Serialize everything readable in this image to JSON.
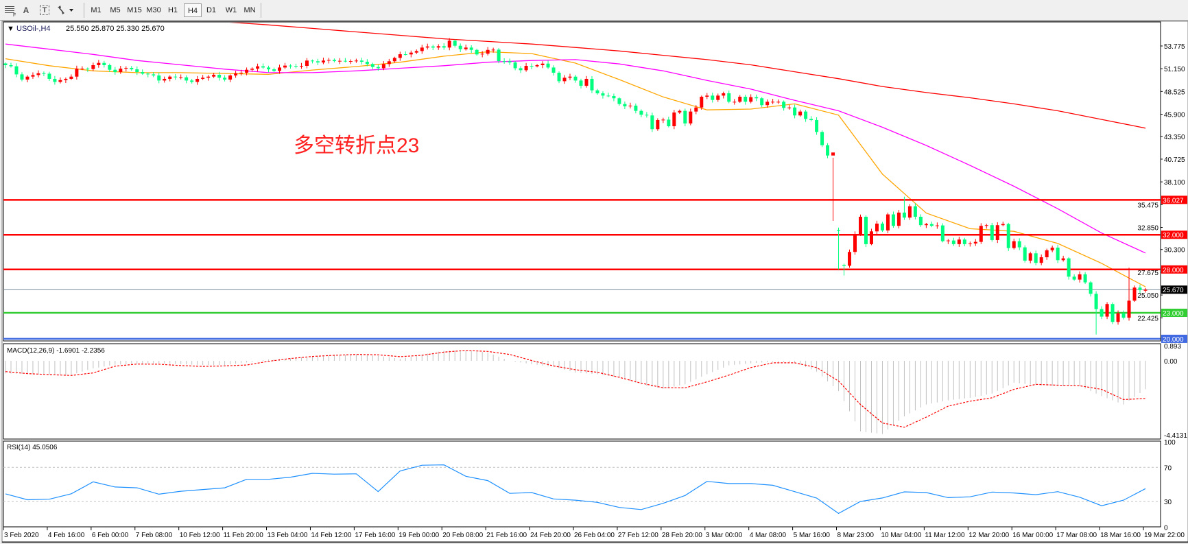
{
  "toolbar": {
    "tools": [
      {
        "icon": "grid-period-separator-icon"
      },
      {
        "icon": "text-label-icon",
        "label": "A"
      },
      {
        "icon": "text-box-icon",
        "label": "T"
      },
      {
        "icon": "arrows-dropdown-icon"
      }
    ],
    "timeframes": [
      "M1",
      "M5",
      "M15",
      "M30",
      "H1",
      "H4",
      "D1",
      "W1",
      "MN"
    ],
    "active_timeframe": "H4"
  },
  "header": {
    "collapse_glyph": "▼",
    "symbol": "USOil-,H4",
    "ohlc_text": "25.550 25.870 25.330 25.670"
  },
  "annotation": "多空转折点23",
  "colors": {
    "bull": "#ff0000",
    "bear": "#00ff7f",
    "ma_fast": "#ffa500",
    "ma_mid": "#ff00ff",
    "ma_slow": "#ff0000",
    "macd_hist": "#c0c0c0",
    "macd_signal": "#ff0000",
    "rsi": "#1e90ff"
  },
  "chart_data": [
    {
      "type": "candlestick",
      "symbol": "USOil-",
      "timeframe": "H4",
      "last_bar": {
        "open": 25.55,
        "high": 25.87,
        "low": 25.33,
        "close": 25.67
      },
      "ylim": [
        20.0,
        56.5
      ],
      "y_ticks": [
        "53.775",
        "51.150",
        "48.525",
        "45.900",
        "43.350",
        "40.725",
        "38.100",
        "35.475",
        "32.850",
        "30.300",
        "27.675",
        "25.050",
        "22.425"
      ],
      "x_ticks": [
        "3 Feb 2020",
        "4 Feb 16:00",
        "6 Feb 00:00",
        "7 Feb 08:00",
        "10 Feb 12:00",
        "11 Feb 20:00",
        "13 Feb 04:00",
        "14 Feb 12:00",
        "17 Feb 16:00",
        "19 Feb 00:00",
        "20 Feb 08:00",
        "21 Feb 16:00",
        "24 Feb 20:00",
        "26 Feb 04:00",
        "27 Feb 12:00",
        "28 Feb 20:00",
        "3 Mar 00:00",
        "4 Mar 08:00",
        "5 Mar 16:00",
        "8 Mar 23:00",
        "10 Mar 04:00",
        "11 Mar 12:00",
        "12 Mar 20:00",
        "16 Mar 00:00",
        "17 Mar 08:00",
        "18 Mar 16:00",
        "19 Mar 22:00"
      ],
      "closes": [
        51.56,
        51.43,
        50.5,
        49.9,
        50.24,
        50.42,
        50.63,
        50.58,
        49.98,
        49.63,
        49.84,
        49.98,
        50.24,
        51.16,
        51.16,
        51.11,
        51.56,
        51.82,
        51.56,
        51.03,
        50.77,
        51.16,
        51.24,
        51.08,
        50.77,
        50.58,
        50.5,
        50.37,
        49.79,
        49.98,
        50.24,
        50.16,
        50.16,
        49.79,
        49.63,
        49.98,
        50.11,
        50.24,
        50.45,
        50.11,
        49.9,
        50.37,
        50.63,
        50.69,
        51.03,
        51.16,
        51.43,
        51.29,
        51.08,
        50.9,
        51.29,
        51.51,
        51.48,
        51.43,
        51.48,
        52.09,
        52.01,
        51.87,
        52.09,
        52.16,
        52.03,
        52.06,
        52.03,
        52.03,
        52.09,
        51.95,
        51.69,
        51.35,
        51.21,
        51.69,
        52.01,
        52.4,
        52.82,
        52.8,
        53.01,
        53.19,
        53.59,
        53.72,
        53.59,
        53.75,
        53.59,
        54.38,
        53.8,
        53.4,
        53.59,
        53.32,
        52.8,
        52.88,
        53.32,
        53.35,
        52.03,
        52.01,
        51.87,
        51.21,
        50.98,
        51.48,
        51.43,
        51.56,
        51.74,
        51.29,
        50.69,
        49.71,
        50.11,
        50.24,
        49.79,
        49.18,
        49.98,
        48.66,
        48.31,
        48.05,
        48.0,
        47.74,
        47.08,
        46.81,
        46.89,
        46.29,
        45.84,
        45.76,
        44.18,
        45.23,
        45.28,
        44.52,
        46.1,
        46.29,
        44.84,
        46.21,
        46.68,
        47.92,
        48.05,
        47.55,
        48.05,
        48.32,
        47.34,
        47.34,
        47.92,
        47.34,
        47.87,
        47.74,
        46.95,
        47.34,
        47.34,
        47.34,
        46.63,
        46.68,
        45.76,
        46.21,
        45.36,
        45.23,
        43.86,
        42.33,
        41.14,
        41.49,
        32.44,
        28.43,
        30.02,
        32.05,
        34.08,
        30.92,
        32.39,
        33.29,
        32.5,
        34.35,
        33.03,
        34.56,
        33.98,
        35.29,
        34.08,
        33.11,
        33.24,
        33.03,
        33.08,
        31.26,
        31.34,
        30.92,
        31.45,
        30.92,
        31.0,
        31.18,
        33.03,
        33.11,
        31.39,
        33.11,
        33.24,
        30.47,
        31.26,
        30.55,
        29.02,
        29.86,
        28.76,
        29.41,
        30.21,
        30.52,
        29.07,
        29.28,
        27.17,
        26.83,
        27.44,
        26.51,
        25.19,
        23.43,
        22.56,
        24.01,
        21.95,
        22.95,
        22.43,
        24.4,
        25.91,
        25.64,
        25.67
      ],
      "wick_extremes": [
        {
          "bar": 151,
          "high": 33.6
        },
        {
          "bar": 152,
          "low": 28.0
        },
        {
          "bar": 153,
          "low": 27.3
        },
        {
          "bar": 164,
          "high": 36.4
        },
        {
          "bar": 199,
          "low": 20.5
        },
        {
          "bar": 205,
          "high": 28.2
        }
      ],
      "moving_averages_at_x_ticks": [
        {
          "color_key": "ma_fast",
          "values": [
            52.3,
            51.5,
            50.9,
            50.7,
            50.7,
            50.6,
            50.5,
            51.0,
            51.4,
            51.9,
            52.6,
            53.1,
            52.9,
            51.8,
            49.9,
            47.9,
            46.4,
            46.5,
            47.1,
            45.8,
            39.0,
            34.5,
            32.7,
            32.4,
            31.0,
            28.7,
            26.0
          ]
        },
        {
          "color_key": "ma_mid",
          "values": [
            54.0,
            53.4,
            52.8,
            52.1,
            51.6,
            51.1,
            50.7,
            50.7,
            50.9,
            51.2,
            51.5,
            51.9,
            52.1,
            52.2,
            51.7,
            50.9,
            49.8,
            48.8,
            47.5,
            46.3,
            44.4,
            42.3,
            40.0,
            37.6,
            35.0,
            32.2,
            29.9
          ]
        },
        {
          "color_key": "ma_slow",
          "values": [
            null,
            null,
            null,
            null,
            56.9,
            56.55,
            56.2,
            55.8,
            55.4,
            55.0,
            54.6,
            54.3,
            54.0,
            53.6,
            53.2,
            52.7,
            52.2,
            51.6,
            50.8,
            50.0,
            49.1,
            48.4,
            47.8,
            47.1,
            46.3,
            45.3,
            44.3
          ]
        }
      ],
      "horizontal_levels": [
        {
          "value": 36.027,
          "label": "36.027",
          "color": "#ff0000",
          "text_color": "#ffffff"
        },
        {
          "value": 32.0,
          "label": "32.000",
          "color": "#ff0000",
          "text_color": "#ffffff"
        },
        {
          "value": 28.0,
          "label": "28.000",
          "color": "#ff0000",
          "text_color": "#ffffff"
        },
        {
          "value": 25.67,
          "label": "25.670",
          "color": "#778899",
          "badge": "#000000",
          "text_color": "#ffffff"
        },
        {
          "value": 23.0,
          "label": "23.000",
          "color": "#32cd32",
          "text_color": "#ffffff"
        },
        {
          "value": 20.0,
          "label": "20.000",
          "color": "#4169e1",
          "text_color": "#ffffff"
        }
      ]
    },
    {
      "type": "bar",
      "title": "MACD(12,26,9) -1.6901 -2.2356",
      "ylim": [
        -4.4131,
        0.893
      ],
      "y_ticks": [
        "0.893",
        "0.00",
        "-4.4131"
      ],
      "sample_every_bars": 4,
      "macd": [
        -0.75,
        -0.78,
        -0.82,
        -0.84,
        -0.45,
        -0.23,
        -0.18,
        -0.15,
        -0.2,
        -0.25,
        -0.25,
        -0.1,
        0.08,
        0.15,
        0.28,
        0.35,
        0.38,
        0.3,
        0.12,
        0.38,
        0.6,
        0.62,
        0.5,
        0.0,
        -0.2,
        -0.35,
        -0.7,
        -0.8,
        -1.0,
        -1.4,
        -1.66,
        -1.4,
        -0.8,
        -0.27,
        -0.15,
        -0.05,
        -0.1,
        -0.64,
        -1.8,
        -4.2,
        -4.35,
        -3.3,
        -2.6,
        -2.35,
        -2.2,
        -1.95,
        -1.3,
        -1.45,
        -1.5,
        -1.5,
        -2.1,
        -2.6,
        -1.69
      ],
      "signal": [
        -0.64,
        -0.76,
        -0.82,
        -0.87,
        -0.72,
        -0.32,
        -0.19,
        -0.2,
        -0.28,
        -0.33,
        -0.3,
        -0.25,
        -0.03,
        0.14,
        0.26,
        0.33,
        0.38,
        0.36,
        0.25,
        0.33,
        0.52,
        0.62,
        0.56,
        0.38,
        0.02,
        -0.3,
        -0.53,
        -0.68,
        -0.98,
        -1.33,
        -1.6,
        -1.61,
        -1.25,
        -0.85,
        -0.4,
        -0.12,
        -0.12,
        -0.4,
        -1.2,
        -2.6,
        -3.7,
        -3.95,
        -3.35,
        -2.7,
        -2.4,
        -2.2,
        -1.7,
        -1.4,
        -1.45,
        -1.48,
        -1.7,
        -2.3,
        -2.24
      ]
    },
    {
      "type": "line",
      "title": "RSI(14) 45.0506",
      "ylim": [
        0,
        100
      ],
      "y_ticks": [
        "100",
        "70",
        "30",
        "0"
      ],
      "levels": [
        70,
        30
      ],
      "sample_every_bars": 4,
      "values": [
        38.9,
        32,
        32.7,
        39,
        53,
        47,
        46,
        38.5,
        42,
        44,
        46,
        56,
        56,
        58.5,
        63,
        62,
        62.4,
        41.6,
        65.7,
        72.5,
        73,
        59.5,
        54.5,
        39.5,
        40.5,
        33,
        31.5,
        29,
        23,
        20.5,
        27.8,
        37,
        53.6,
        51,
        51,
        49,
        41.5,
        34,
        16,
        30,
        34.1,
        41.3,
        40.5,
        34.5,
        35.5,
        41,
        40,
        38,
        41.5,
        35,
        25,
        31.5,
        45.05
      ]
    }
  ]
}
